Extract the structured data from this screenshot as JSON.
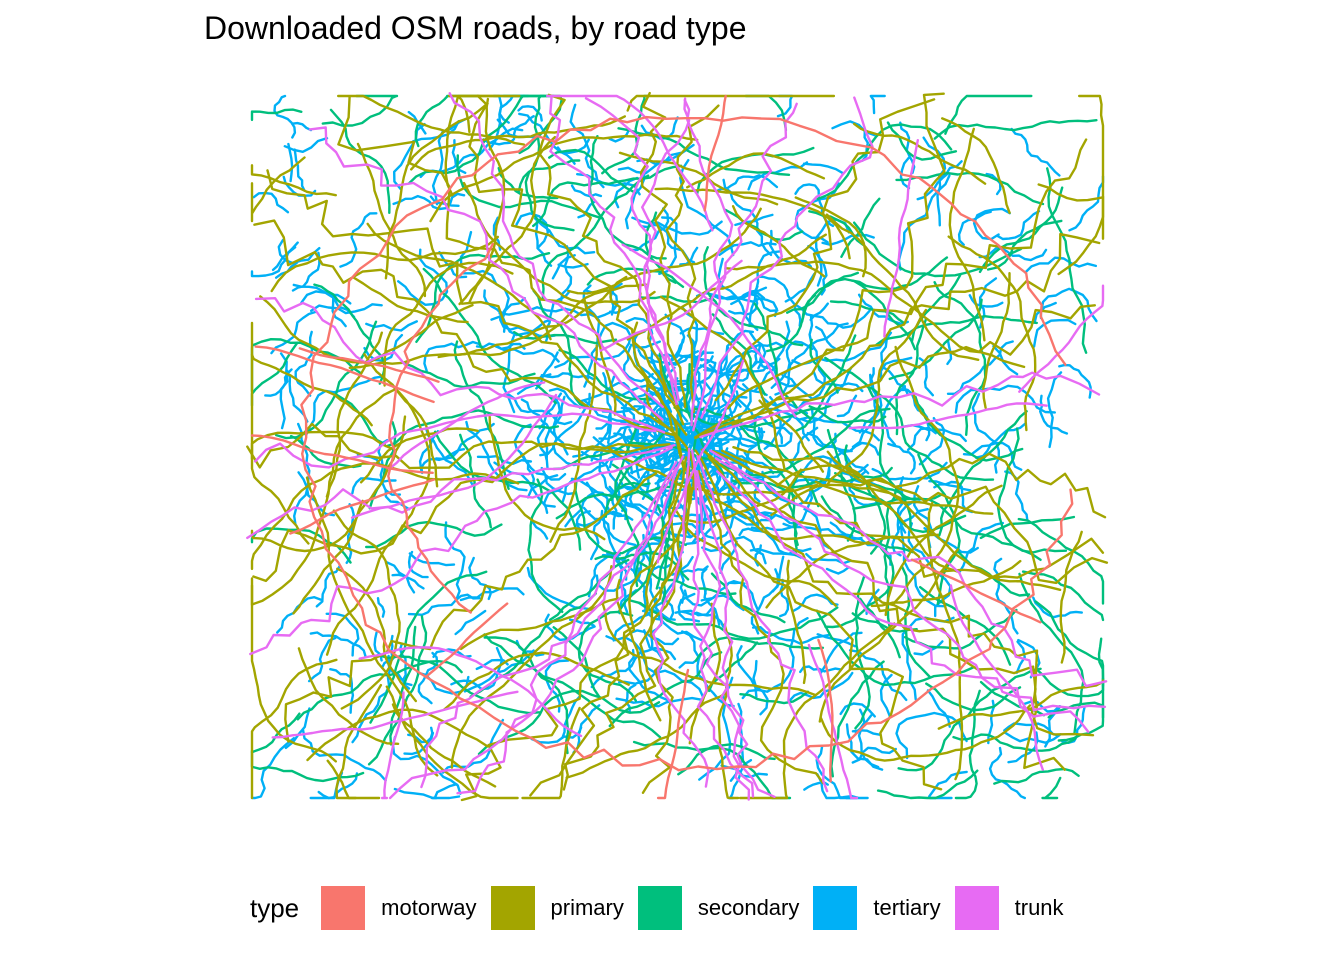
{
  "title": "Downloaded OSM roads, by road type",
  "legend": {
    "title": "type",
    "items": [
      {
        "key": "motorway",
        "label": "motorway",
        "color": "#F8766D"
      },
      {
        "key": "primary",
        "label": "primary",
        "color": "#A3A500"
      },
      {
        "key": "secondary",
        "label": "secondary",
        "color": "#00BF7D"
      },
      {
        "key": "tertiary",
        "label": "tertiary",
        "color": "#00B0F6"
      },
      {
        "key": "trunk",
        "label": "trunk",
        "color": "#E76BF3"
      }
    ]
  }
}
